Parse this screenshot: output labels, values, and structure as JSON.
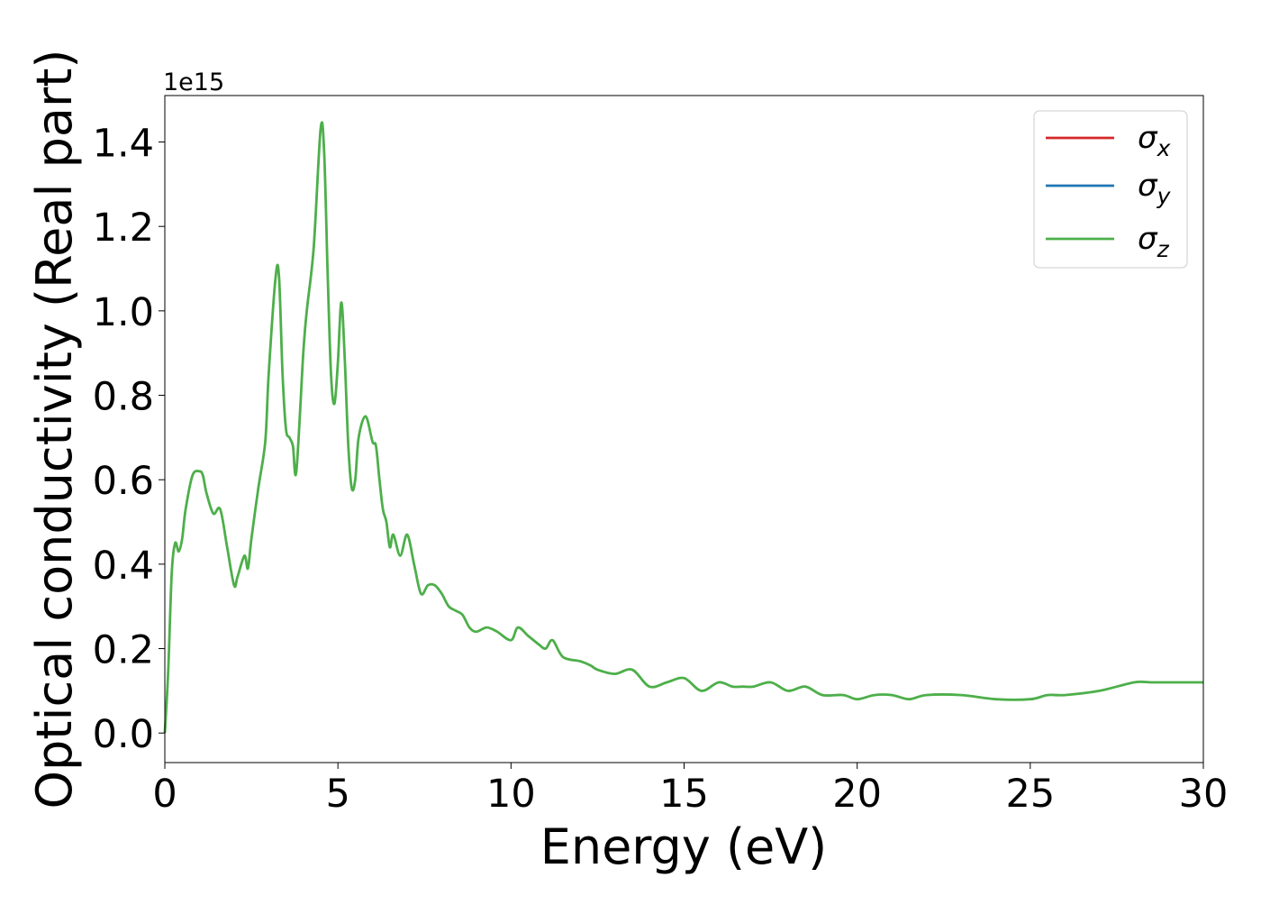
{
  "chart_data": {
    "type": "line",
    "title": "",
    "xlabel": "Energy (eV)",
    "ylabel": "Optical conductivity (Real part)",
    "y_offset_text": "1e15",
    "y_multiplier": 1000000000000000.0,
    "xlim": [
      0,
      30
    ],
    "ylim": [
      -0.07,
      1.51
    ],
    "x_ticks": [
      0,
      5,
      10,
      15,
      20,
      25,
      30
    ],
    "x_tick_labels": [
      "0",
      "5",
      "10",
      "15",
      "20",
      "25",
      "30"
    ],
    "y_ticks": [
      0.0,
      0.2,
      0.4,
      0.6,
      0.8,
      1.0,
      1.2,
      1.4
    ],
    "y_tick_labels": [
      "0.0",
      "0.2",
      "0.4",
      "0.6",
      "0.8",
      "1.0",
      "1.2",
      "1.4"
    ],
    "grid": false,
    "legend_position": "top-right",
    "series": [
      {
        "name": "σ_x",
        "label_base": "σ",
        "label_sub": "x",
        "color": "#d62728",
        "x": [],
        "y": []
      },
      {
        "name": "σ_y",
        "label_base": "σ",
        "label_sub": "y",
        "color": "#1f77b4",
        "x": [],
        "y": []
      },
      {
        "name": "σ_z",
        "label_base": "σ",
        "label_sub": "z",
        "color": "#4daf4a",
        "x": [
          0.0,
          0.1,
          0.2,
          0.3,
          0.4,
          0.5,
          0.6,
          0.8,
          1.0,
          1.1,
          1.2,
          1.4,
          1.6,
          1.8,
          2.0,
          2.1,
          2.3,
          2.4,
          2.5,
          2.7,
          2.9,
          3.0,
          3.2,
          3.3,
          3.4,
          3.5,
          3.6,
          3.7,
          3.8,
          4.0,
          4.1,
          4.3,
          4.5,
          4.6,
          4.7,
          4.8,
          4.9,
          5.0,
          5.1,
          5.2,
          5.3,
          5.4,
          5.5,
          5.6,
          5.8,
          6.0,
          6.1,
          6.2,
          6.3,
          6.4,
          6.5,
          6.6,
          6.8,
          7.0,
          7.2,
          7.4,
          7.6,
          7.8,
          8.0,
          8.2,
          8.4,
          8.6,
          8.8,
          9.0,
          9.3,
          9.6,
          10.0,
          10.2,
          10.5,
          10.8,
          11.0,
          11.2,
          11.5,
          12.0,
          12.3,
          12.5,
          13.0,
          13.5,
          14.0,
          14.5,
          15.0,
          15.5,
          16.0,
          16.4,
          16.7,
          17.0,
          17.5,
          18.0,
          18.5,
          19.0,
          19.6,
          20.0,
          20.5,
          21.0,
          21.5,
          22.0,
          23.0,
          24.0,
          25.0,
          25.5,
          26.0,
          27.0,
          28.0,
          28.5,
          29.0,
          30.0
        ],
        "y": [
          0.0,
          0.15,
          0.38,
          0.45,
          0.43,
          0.46,
          0.53,
          0.61,
          0.62,
          0.61,
          0.57,
          0.52,
          0.53,
          0.44,
          0.35,
          0.37,
          0.42,
          0.39,
          0.46,
          0.58,
          0.69,
          0.85,
          1.08,
          1.08,
          0.85,
          0.72,
          0.7,
          0.68,
          0.62,
          0.9,
          1.0,
          1.15,
          1.43,
          1.38,
          1.1,
          0.85,
          0.78,
          0.88,
          1.02,
          0.88,
          0.68,
          0.58,
          0.6,
          0.7,
          0.75,
          0.69,
          0.68,
          0.6,
          0.53,
          0.5,
          0.44,
          0.47,
          0.42,
          0.47,
          0.4,
          0.33,
          0.35,
          0.35,
          0.33,
          0.3,
          0.29,
          0.28,
          0.25,
          0.24,
          0.25,
          0.24,
          0.22,
          0.25,
          0.23,
          0.21,
          0.2,
          0.22,
          0.18,
          0.17,
          0.16,
          0.15,
          0.14,
          0.15,
          0.11,
          0.12,
          0.13,
          0.1,
          0.12,
          0.11,
          0.11,
          0.11,
          0.12,
          0.1,
          0.11,
          0.09,
          0.09,
          0.08,
          0.09,
          0.09,
          0.08,
          0.09,
          0.09,
          0.08,
          0.08,
          0.09,
          0.09,
          0.1,
          0.12,
          0.12,
          0.12,
          0.12
        ]
      }
    ]
  }
}
